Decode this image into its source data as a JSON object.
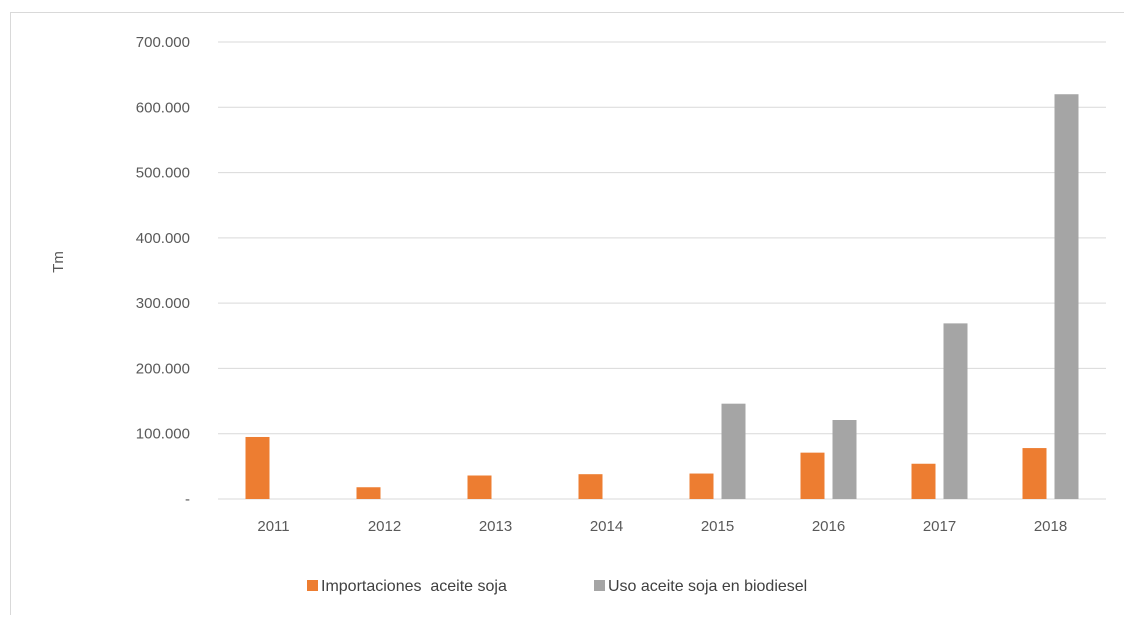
{
  "chart_data": {
    "type": "bar",
    "categories": [
      "2011",
      "2012",
      "2013",
      "2014",
      "2015",
      "2016",
      "2017",
      "2018"
    ],
    "series": [
      {
        "name": "Importaciones  aceite soja",
        "color": "#ed7d31",
        "values": [
          95000,
          18000,
          36000,
          38000,
          39000,
          71000,
          54000,
          78000
        ]
      },
      {
        "name": "Uso aceite soja en biodiesel",
        "color": "#a5a5a5",
        "values": [
          0,
          0,
          0,
          0,
          146000,
          121000,
          269000,
          620000
        ]
      }
    ],
    "ylabel": "Tm",
    "ylim": [
      0,
      700000
    ],
    "yticks": [
      0,
      100000,
      200000,
      300000,
      400000,
      500000,
      600000,
      700000
    ],
    "ytick_labels": [
      "-",
      "100.000",
      "200.000",
      "300.000",
      "400.000",
      "500.000",
      "600.000",
      "700.000"
    ],
    "grid": true,
    "legend_position": "bottom"
  }
}
